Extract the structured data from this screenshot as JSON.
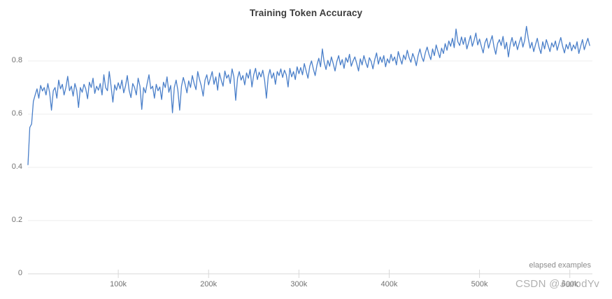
{
  "page": {
    "title": "Training Token Accuracy"
  },
  "watermark": {
    "text": "CSDN @JarodYv"
  },
  "colors": {
    "line": "#4a7fc9",
    "grid": "#ececec",
    "axis": "#d9d9d9",
    "tick": "#d8d8d8",
    "tick_text": "#717171",
    "title_text": "#3d3d3d",
    "watermark_text": "#a8a8a8"
  },
  "chart_data": {
    "type": "line",
    "title": "Training Token Accuracy",
    "xlabel": "elapsed examples",
    "ylabel": "",
    "legend": false,
    "grid": true,
    "xlim": [
      0,
      625000
    ],
    "ylim": [
      0,
      0.95
    ],
    "x_start": 0,
    "x_step": 2000,
    "x_ticks": [
      {
        "value": 100000,
        "label": "100k"
      },
      {
        "value": 200000,
        "label": "200k"
      },
      {
        "value": 300000,
        "label": "300k"
      },
      {
        "value": 400000,
        "label": "400k"
      },
      {
        "value": 500000,
        "label": "500k"
      },
      {
        "value": 600000,
        "label": "600k"
      }
    ],
    "y_ticks": [
      {
        "value": 0,
        "label": "0"
      },
      {
        "value": 0.2,
        "label": "0.2"
      },
      {
        "value": 0.4,
        "label": "0.4"
      },
      {
        "value": 0.6,
        "label": "0.6"
      },
      {
        "value": 0.8,
        "label": "0.8"
      }
    ],
    "series": [
      {
        "name": "training token accuracy",
        "values": [
          0.41,
          0.55,
          0.563,
          0.648,
          0.672,
          0.695,
          0.66,
          0.708,
          0.687,
          0.7,
          0.672,
          0.715,
          0.68,
          0.615,
          0.688,
          0.7,
          0.66,
          0.728,
          0.695,
          0.712,
          0.672,
          0.7,
          0.742,
          0.688,
          0.705,
          0.668,
          0.715,
          0.69,
          0.625,
          0.7,
          0.682,
          0.712,
          0.695,
          0.658,
          0.72,
          0.7,
          0.735,
          0.678,
          0.705,
          0.69,
          0.715,
          0.672,
          0.748,
          0.7,
          0.688,
          0.76,
          0.705,
          0.645,
          0.71,
          0.69,
          0.718,
          0.695,
          0.728,
          0.68,
          0.705,
          0.745,
          0.69,
          0.662,
          0.715,
          0.7,
          0.672,
          0.735,
          0.705,
          0.618,
          0.7,
          0.68,
          0.715,
          0.748,
          0.695,
          0.705,
          0.66,
          0.712,
          0.688,
          0.702,
          0.655,
          0.72,
          0.7,
          0.74,
          0.682,
          0.708,
          0.605,
          0.7,
          0.728,
          0.69,
          0.615,
          0.705,
          0.738,
          0.712,
          0.68,
          0.725,
          0.7,
          0.745,
          0.715,
          0.692,
          0.76,
          0.73,
          0.705,
          0.668,
          0.728,
          0.748,
          0.71,
          0.735,
          0.76,
          0.712,
          0.74,
          0.69,
          0.755,
          0.728,
          0.705,
          0.762,
          0.735,
          0.748,
          0.715,
          0.77,
          0.74,
          0.652,
          0.735,
          0.76,
          0.728,
          0.745,
          0.71,
          0.755,
          0.735,
          0.768,
          0.702,
          0.748,
          0.772,
          0.73,
          0.758,
          0.74,
          0.765,
          0.728,
          0.66,
          0.742,
          0.768,
          0.735,
          0.755,
          0.712,
          0.76,
          0.745,
          0.77,
          0.738,
          0.765,
          0.748,
          0.702,
          0.772,
          0.74,
          0.76,
          0.73,
          0.778,
          0.752,
          0.775,
          0.748,
          0.79,
          0.762,
          0.735,
          0.78,
          0.8,
          0.77,
          0.745,
          0.785,
          0.81,
          0.778,
          0.845,
          0.795,
          0.768,
          0.802,
          0.78,
          0.815,
          0.79,
          0.762,
          0.798,
          0.82,
          0.785,
          0.805,
          0.772,
          0.812,
          0.795,
          0.825,
          0.78,
          0.8,
          0.815,
          0.79,
          0.762,
          0.808,
          0.785,
          0.82,
          0.795,
          0.775,
          0.812,
          0.798,
          0.77,
          0.805,
          0.83,
          0.788,
          0.815,
          0.795,
          0.82,
          0.778,
          0.808,
          0.792,
          0.825,
          0.8,
          0.815,
          0.785,
          0.835,
          0.81,
          0.788,
          0.822,
          0.805,
          0.84,
          0.812,
          0.795,
          0.828,
          0.81,
          0.782,
          0.82,
          0.845,
          0.815,
          0.798,
          0.83,
          0.852,
          0.825,
          0.805,
          0.845,
          0.82,
          0.86,
          0.835,
          0.812,
          0.848,
          0.828,
          0.865,
          0.84,
          0.875,
          0.855,
          0.885,
          0.85,
          0.92,
          0.872,
          0.858,
          0.89,
          0.862,
          0.888,
          0.845,
          0.87,
          0.895,
          0.855,
          0.878,
          0.905,
          0.86,
          0.882,
          0.855,
          0.83,
          0.868,
          0.885,
          0.848,
          0.872,
          0.895,
          0.852,
          0.825,
          0.865,
          0.88,
          0.858,
          0.892,
          0.845,
          0.87,
          0.815,
          0.862,
          0.888,
          0.855,
          0.875,
          0.842,
          0.868,
          0.89,
          0.852,
          0.878,
          0.93,
          0.885,
          0.848,
          0.87,
          0.835,
          0.862,
          0.885,
          0.85,
          0.828,
          0.872,
          0.845,
          0.88,
          0.858,
          0.835,
          0.868,
          0.852,
          0.875,
          0.84,
          0.865,
          0.888,
          0.855,
          0.83,
          0.862,
          0.845,
          0.87,
          0.838,
          0.86,
          0.845,
          0.872,
          0.828,
          0.855,
          0.88,
          0.842,
          0.865,
          0.885,
          0.858
        ]
      }
    ]
  }
}
